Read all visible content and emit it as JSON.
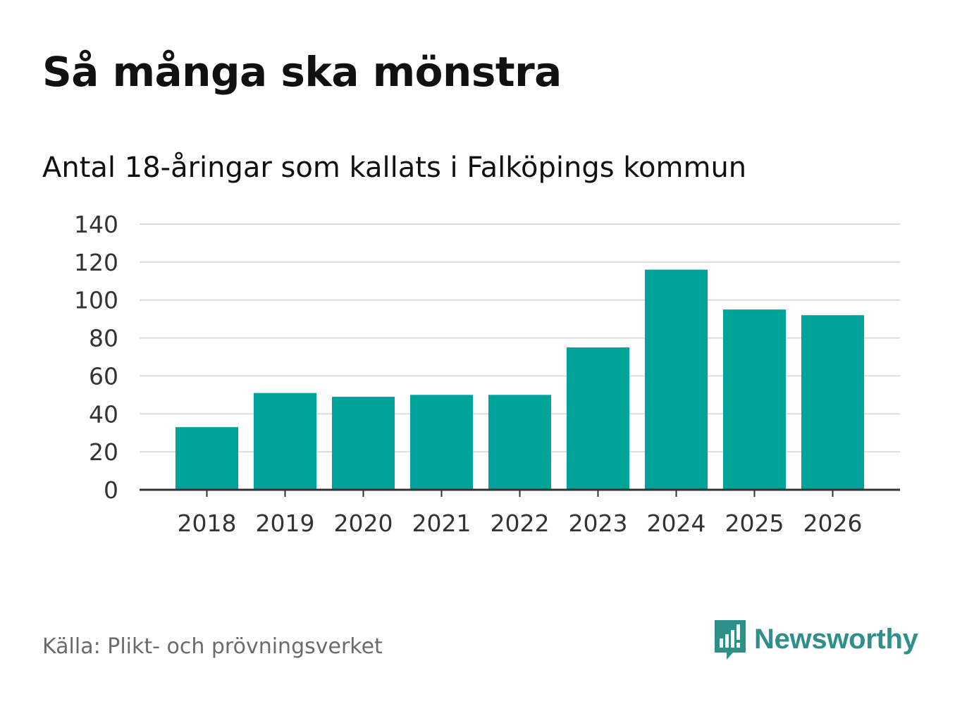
{
  "header": {
    "title": "Så många ska mönstra",
    "subtitle": "Antal 18-åringar som kallats i Falköpings kommun"
  },
  "chart_data": {
    "type": "bar",
    "title": "Så många ska mönstra",
    "subtitle": "Antal 18-åringar som kallats i Falköpings kommun",
    "categories": [
      "2018",
      "2019",
      "2020",
      "2021",
      "2022",
      "2023",
      "2024",
      "2025",
      "2026"
    ],
    "values": [
      33,
      51,
      49,
      50,
      50,
      75,
      116,
      95,
      92
    ],
    "xlabel": "",
    "ylabel": "",
    "ylim": [
      0,
      140
    ],
    "yticks": [
      0,
      20,
      40,
      60,
      80,
      100,
      120,
      140
    ],
    "grid": true,
    "legend": "none",
    "bar_color": "#00a39a",
    "grid_color": "#dcdcdc",
    "axis_color": "#333333"
  },
  "footer": {
    "source": "Källa: Plikt- och prövningsverket",
    "brand": "Newsworthy",
    "brand_icon": "newsworthy-logo-icon",
    "brand_color": "#2f8f8a"
  }
}
